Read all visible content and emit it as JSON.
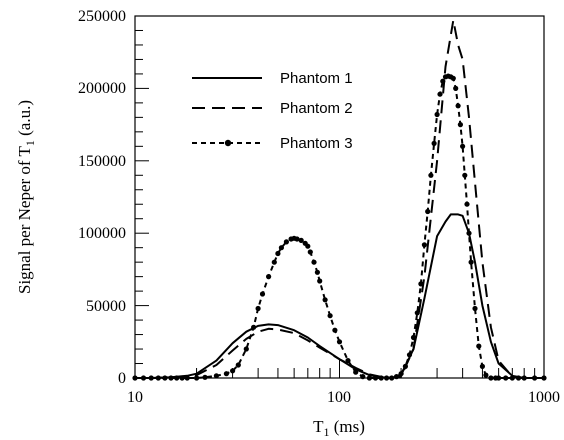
{
  "chart_data": {
    "type": "line",
    "x_scale": "log",
    "xlim": [
      10,
      1000
    ],
    "ylim": [
      0,
      250000
    ],
    "x_ticks": [
      "10",
      "100",
      "1000"
    ],
    "y_ticks": [
      "0",
      "50000",
      "100000",
      "150000",
      "200000",
      "250000"
    ],
    "xlabel": {
      "main": "T",
      "sub": "1",
      "tail": " (ms)"
    },
    "ylabel": {
      "main": "Signal per Neper of T",
      "sub": "1",
      "tail": " (a.u.)"
    },
    "grid": false,
    "legend_position": "top-left",
    "series": [
      {
        "name": "Phantom 1",
        "style": "solid",
        "x": [
          10,
          12,
          15,
          18,
          20,
          25,
          30,
          35,
          40,
          45,
          50,
          60,
          70,
          80,
          100,
          120,
          140,
          160,
          180,
          200,
          230,
          260,
          300,
          330,
          350,
          380,
          400,
          430,
          460,
          500,
          550,
          600,
          700,
          800,
          1000
        ],
        "y": [
          0,
          0,
          500,
          1500,
          3000,
          12000,
          24000,
          32000,
          36000,
          37000,
          36500,
          33000,
          28000,
          22000,
          13000,
          6000,
          2000,
          500,
          0,
          2000,
          20000,
          55000,
          98000,
          108000,
          113000,
          113000,
          112000,
          100000,
          80000,
          50000,
          25000,
          10000,
          1500,
          0,
          0
        ]
      },
      {
        "name": "Phantom 2",
        "style": "dashed",
        "x": [
          10,
          12,
          15,
          18,
          20,
          25,
          30,
          35,
          40,
          45,
          50,
          60,
          70,
          80,
          100,
          120,
          140,
          160,
          180,
          200,
          230,
          260,
          300,
          330,
          360,
          380,
          400,
          430,
          460,
          500,
          550,
          600,
          700,
          800,
          1000
        ],
        "y": [
          0,
          0,
          300,
          1000,
          2000,
          9000,
          19000,
          27000,
          32000,
          34000,
          33500,
          31000,
          26000,
          21000,
          13000,
          7000,
          2500,
          800,
          0,
          1000,
          20000,
          70000,
          150000,
          215000,
          247000,
          230000,
          220000,
          180000,
          135000,
          80000,
          35000,
          12000,
          1000,
          0,
          0
        ]
      },
      {
        "name": "Phantom 3",
        "style": "dotted-markers",
        "x": [
          10,
          11,
          12,
          13,
          14,
          15,
          16,
          17,
          18,
          20,
          22,
          25,
          28,
          30,
          32,
          35,
          38,
          40,
          42,
          45,
          48,
          50,
          52,
          55,
          58,
          60,
          62,
          65,
          68,
          70,
          72,
          75,
          78,
          80,
          85,
          90,
          95,
          100,
          110,
          120,
          130,
          140,
          150,
          160,
          170,
          180,
          190,
          200,
          210,
          220,
          230,
          240,
          250,
          260,
          270,
          280,
          290,
          300,
          310,
          320,
          330,
          340,
          350,
          360,
          370,
          380,
          390,
          400,
          410,
          420,
          430,
          440,
          460,
          480,
          500,
          520,
          550,
          580,
          600,
          650,
          700,
          750,
          800,
          900,
          1000
        ],
        "y": [
          0,
          0,
          0,
          0,
          0,
          0,
          0,
          0,
          0,
          0,
          500,
          1500,
          3000,
          5000,
          9000,
          20000,
          35000,
          48000,
          58000,
          70000,
          80000,
          86000,
          90000,
          94000,
          96000,
          96500,
          96000,
          95000,
          93000,
          91000,
          87000,
          80000,
          73000,
          67000,
          54000,
          43000,
          33000,
          25000,
          12000,
          4000,
          1000,
          0,
          0,
          0,
          0,
          0,
          1000,
          3000,
          8000,
          16000,
          28000,
          45000,
          65000,
          92000,
          115000,
          140000,
          162000,
          182000,
          196000,
          205000,
          208000,
          208500,
          208000,
          207000,
          200000,
          188000,
          175000,
          160000,
          140000,
          120000,
          100000,
          80000,
          48000,
          22000,
          8000,
          2000,
          0,
          0,
          0,
          0,
          0,
          0,
          0,
          0,
          0
        ]
      }
    ]
  }
}
